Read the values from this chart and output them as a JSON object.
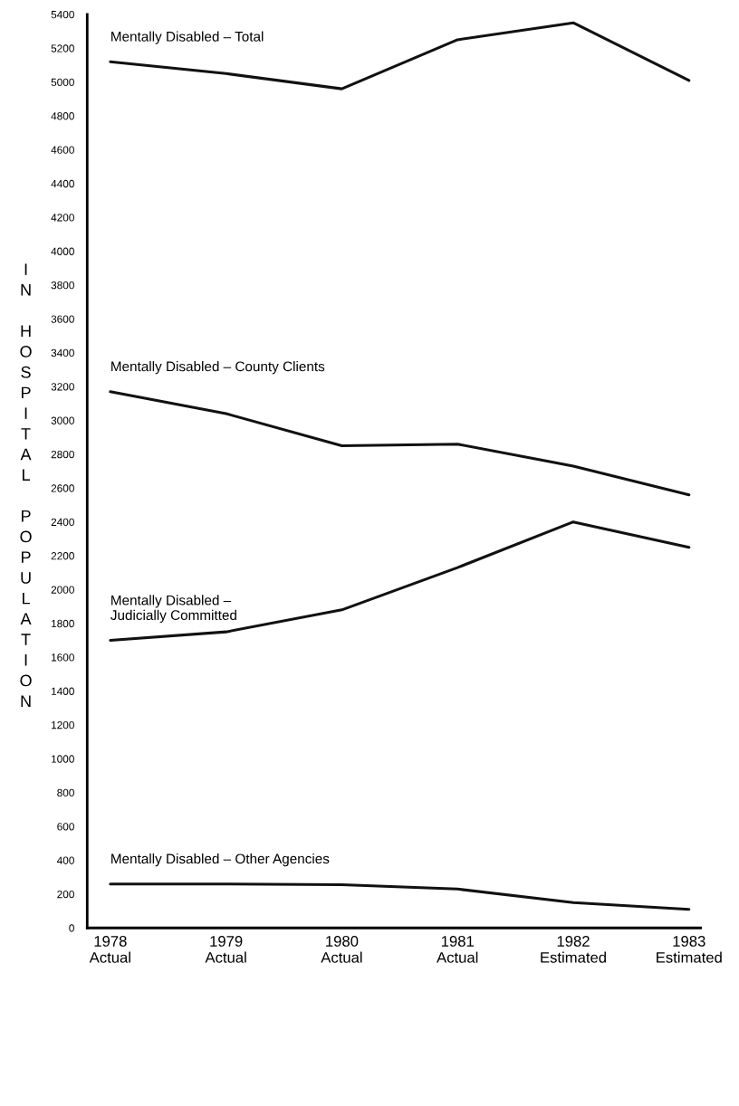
{
  "chart_data": {
    "type": "line",
    "ylabel": "IN HOSPITAL POPULATION",
    "categories": [
      "1978\nActual",
      "1979\nActual",
      "1980\nActual",
      "1981\nActual",
      "1982\nEstimated",
      "1983\nEstimated"
    ],
    "series": [
      {
        "name": "Mentally Disabled – Total",
        "color": "#111111",
        "values": [
          5120,
          5050,
          4960,
          5250,
          5350,
          5010
        ]
      },
      {
        "name": "Mentally Disabled – County Clients",
        "color": "#111111",
        "values": [
          3170,
          3040,
          2850,
          2860,
          2730,
          2560
        ]
      },
      {
        "name": "Mentally Disabled –\nJudicially Committed",
        "color": "#111111",
        "values": [
          1700,
          1750,
          1880,
          2130,
          2400,
          2250
        ]
      },
      {
        "name": "Mentally Disabled – Other Agencies",
        "color": "#111111",
        "values": [
          260,
          260,
          255,
          230,
          150,
          110
        ]
      }
    ],
    "ylim": [
      0,
      5400
    ],
    "yticks": [
      0,
      200,
      400,
      600,
      800,
      1000,
      1200,
      1400,
      1600,
      1800,
      2000,
      2200,
      2400,
      2600,
      2800,
      3000,
      3200,
      3400,
      3600,
      3800,
      4000,
      4200,
      4400,
      4600,
      4800,
      5000,
      5200,
      5400
    ],
    "grid": false,
    "legend": false,
    "marker": "none",
    "line_style": "solid"
  }
}
